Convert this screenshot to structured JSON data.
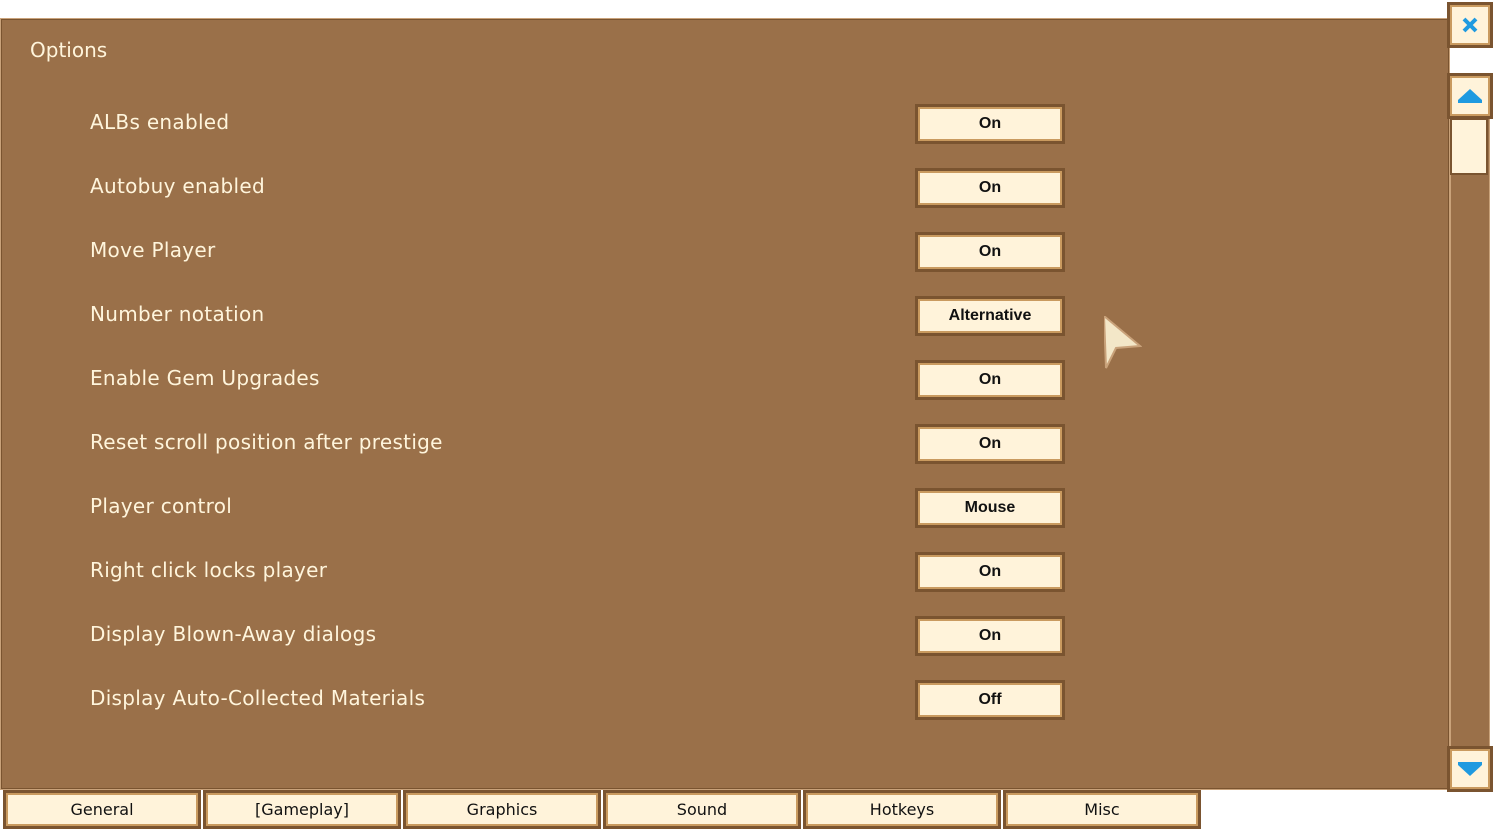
{
  "title": "Options",
  "rows": [
    {
      "label": "ALBs enabled",
      "value": "On"
    },
    {
      "label": "Autobuy enabled",
      "value": "On"
    },
    {
      "label": "Move Player",
      "value": "On"
    },
    {
      "label": "Number notation",
      "value": "Alternative"
    },
    {
      "label": "Enable Gem Upgrades",
      "value": "On"
    },
    {
      "label": "Reset scroll position after prestige",
      "value": "On"
    },
    {
      "label": "Player control",
      "value": "Mouse"
    },
    {
      "label": "Right click locks player",
      "value": "On"
    },
    {
      "label": "Display Blown-Away dialogs",
      "value": "On"
    },
    {
      "label": "Display Auto-Collected Materials",
      "value": "Off"
    }
  ],
  "tabs": [
    "General",
    "[Gameplay]",
    "Graphics",
    "Sound",
    "Hotkeys",
    "Misc"
  ],
  "active_tab": "[Gameplay]",
  "icons": {
    "close": "close-x-icon",
    "up": "arrow-up-icon",
    "down": "arrow-down-icon"
  },
  "colors": {
    "panel": "#9a7049",
    "button": "#fff3da",
    "accent": "#1f9ae0"
  }
}
